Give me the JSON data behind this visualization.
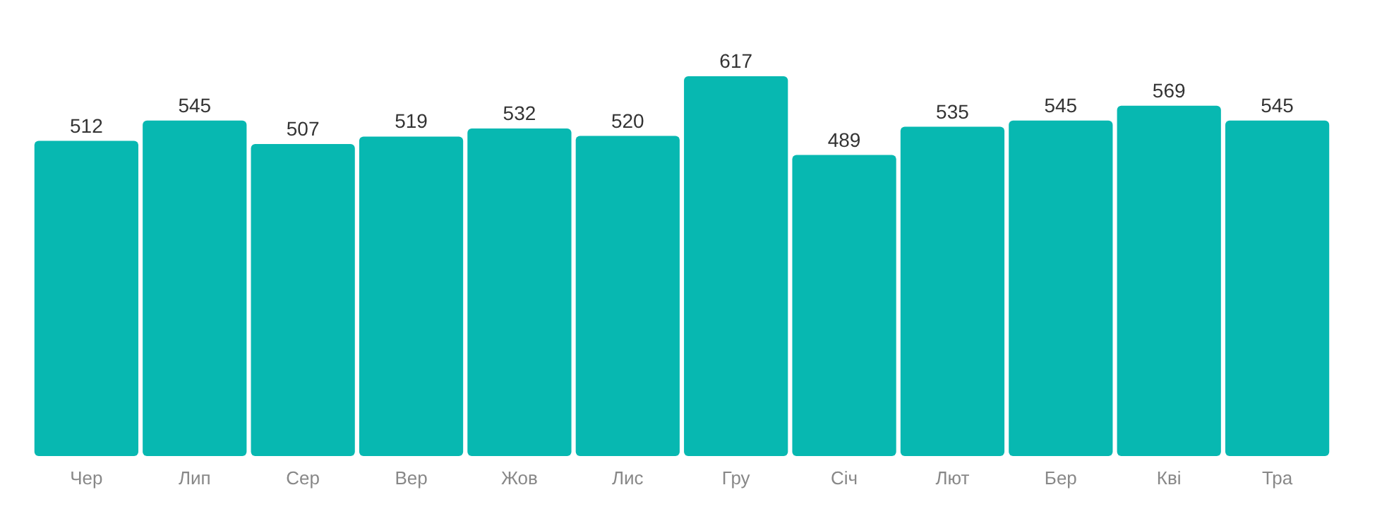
{
  "chart_data": {
    "type": "bar",
    "categories": [
      "Чер",
      "Лип",
      "Сер",
      "Вер",
      "Жов",
      "Лис",
      "Гру",
      "Січ",
      "Лют",
      "Бер",
      "Кві",
      "Тра"
    ],
    "values": [
      512,
      545,
      507,
      519,
      532,
      520,
      617,
      489,
      535,
      545,
      569,
      545
    ],
    "color": "#07b8b1",
    "data_labels": true
  }
}
